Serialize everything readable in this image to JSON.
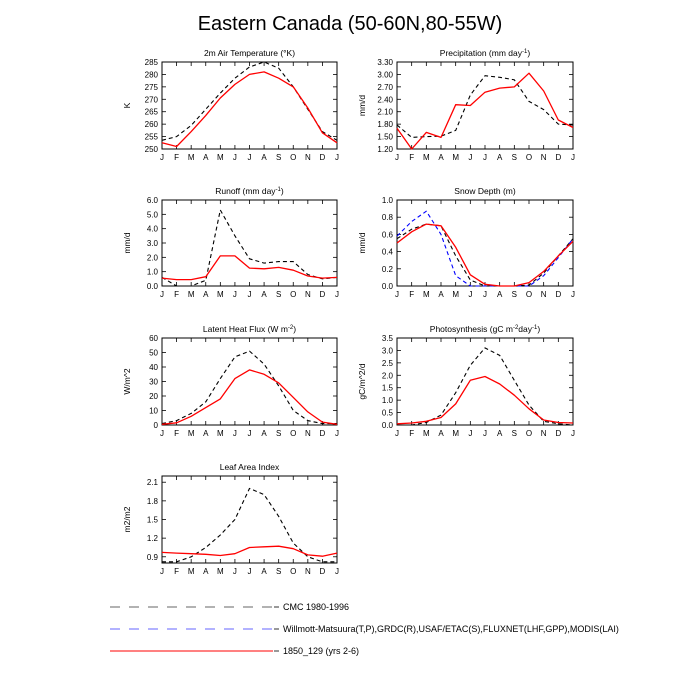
{
  "page": {
    "title": "Eastern Canada (50-60N,80-55W)"
  },
  "legend": [
    {
      "label": "CMC 1980-1996",
      "color": "#000000",
      "dash": true
    },
    {
      "label": "Willmott-Matsuura(T,P),GRDC(R),USAF/ETAC(S),FLUXNET(LHF,GPP),MODIS(LAI)",
      "color": "#0000ff",
      "dash": true
    },
    {
      "label": "1850_129 (yrs 2-6)",
      "color": "#ff0000",
      "dash": false
    }
  ],
  "chart_data": [
    {
      "type": "line",
      "title": "2m Air Temperature (°K)",
      "ylabel": "K",
      "categories": [
        "J",
        "F",
        "M",
        "A",
        "M",
        "J",
        "J",
        "A",
        "S",
        "O",
        "N",
        "D",
        "J"
      ],
      "ylim": [
        250,
        285
      ],
      "yticks": [
        250,
        255,
        260,
        265,
        270,
        275,
        280,
        285
      ],
      "ytick_labels": [
        "250",
        "255",
        "260",
        "265",
        "270",
        "275",
        "280",
        "285"
      ],
      "series": [
        {
          "name": "CMC 1980-1996",
          "color": "#000000",
          "dash": true,
          "values": [
            253.5,
            255,
            259.5,
            266,
            272.5,
            278.5,
            283,
            285,
            282.5,
            275,
            266,
            257,
            253.5
          ]
        },
        {
          "name": "1850_129 (yrs 2-6)",
          "color": "#ff0000",
          "dash": false,
          "values": [
            252.5,
            251,
            257,
            263.5,
            270.5,
            276,
            280,
            281,
            278.5,
            275,
            266.5,
            256.5,
            252.5
          ]
        }
      ]
    },
    {
      "type": "line",
      "title": "Precipitation (mm day-1)",
      "ylabel": "mm/d",
      "categories": [
        "J",
        "F",
        "M",
        "A",
        "M",
        "J",
        "J",
        "A",
        "S",
        "O",
        "N",
        "D",
        "J"
      ],
      "ylim": [
        1.2,
        3.3
      ],
      "yticks": [
        1.2,
        1.5,
        1.8,
        2.1,
        2.4,
        2.7,
        3.0,
        3.3
      ],
      "ytick_labels": [
        "1.20",
        "1.50",
        "1.80",
        "2.10",
        "2.40",
        "2.70",
        "3.00",
        "3.30"
      ],
      "series": [
        {
          "name": "CMC 1980-1996",
          "color": "#000000",
          "dash": true,
          "values": [
            1.78,
            1.48,
            1.5,
            1.51,
            1.65,
            2.5,
            2.97,
            2.93,
            2.87,
            2.35,
            2.15,
            1.8,
            1.78
          ]
        },
        {
          "name": "1850_129 (yrs 2-6)",
          "color": "#ff0000",
          "dash": false,
          "values": [
            1.7,
            1.2,
            1.6,
            1.48,
            2.27,
            2.25,
            2.57,
            2.67,
            2.7,
            3.03,
            2.6,
            1.9,
            1.72
          ]
        }
      ]
    },
    {
      "type": "line",
      "title": "Runoff (mm day-1)",
      "ylabel": "mm/d",
      "categories": [
        "J",
        "F",
        "M",
        "A",
        "M",
        "J",
        "J",
        "A",
        "S",
        "O",
        "N",
        "D",
        "J"
      ],
      "ylim": [
        0,
        6
      ],
      "yticks": [
        0,
        1,
        2,
        3,
        4,
        5,
        6
      ],
      "ytick_labels": [
        "0.0",
        "1.0",
        "2.0",
        "3.0",
        "4.0",
        "5.0",
        "6.0"
      ],
      "series": [
        {
          "name": "CMC 1980-1996",
          "color": "#000000",
          "dash": true,
          "values": [
            0.6,
            0.0,
            0.0,
            0.4,
            5.3,
            3.5,
            1.9,
            1.6,
            1.7,
            1.7,
            0.8,
            0.5,
            0.6
          ]
        },
        {
          "name": "1850_129 (yrs 2-6)",
          "color": "#ff0000",
          "dash": false,
          "values": [
            0.55,
            0.45,
            0.45,
            0.65,
            2.1,
            2.1,
            1.25,
            1.2,
            1.3,
            1.1,
            0.7,
            0.55,
            0.6
          ]
        }
      ]
    },
    {
      "type": "line",
      "title": "Snow Depth (m)",
      "ylabel": "mm/d",
      "categories": [
        "J",
        "F",
        "M",
        "A",
        "M",
        "J",
        "J",
        "A",
        "S",
        "O",
        "N",
        "D",
        "J"
      ],
      "ylim": [
        0,
        1.0
      ],
      "yticks": [
        0,
        0.2,
        0.4,
        0.6,
        0.8,
        1.0
      ],
      "ytick_labels": [
        "0.0",
        "0.2",
        "0.4",
        "0.6",
        "0.8",
        "1.0"
      ],
      "series": [
        {
          "name": "CMC 1980-1996",
          "color": "#000000",
          "dash": true,
          "values": [
            0.55,
            0.66,
            0.72,
            0.7,
            0.35,
            0.07,
            0.0,
            0.0,
            0.0,
            0.01,
            0.15,
            0.35,
            0.55
          ]
        },
        {
          "name": "Willmott-Matsuura(T,P),GRDC(R),USAF/ETAC(S),FLUXNET(LHF,GPP),MODIS(LAI)",
          "color": "#0000ff",
          "dash": true,
          "values": [
            0.58,
            0.75,
            0.87,
            0.6,
            0.12,
            0.0,
            0.0,
            0.0,
            0.0,
            0.0,
            0.12,
            0.33,
            0.55
          ]
        },
        {
          "name": "1850_129 (yrs 2-6)",
          "color": "#ff0000",
          "dash": false,
          "values": [
            0.5,
            0.63,
            0.72,
            0.7,
            0.45,
            0.13,
            0.02,
            0.0,
            0.0,
            0.04,
            0.17,
            0.35,
            0.52
          ]
        }
      ]
    },
    {
      "type": "line",
      "title": "Latent Heat Flux (W m-2)",
      "ylabel": "W/m^2",
      "categories": [
        "J",
        "F",
        "M",
        "A",
        "M",
        "J",
        "J",
        "A",
        "S",
        "O",
        "N",
        "D",
        "J"
      ],
      "ylim": [
        0,
        60
      ],
      "yticks": [
        0,
        10,
        20,
        30,
        40,
        50,
        60
      ],
      "ytick_labels": [
        "0",
        "10",
        "20",
        "30",
        "40",
        "50",
        "60"
      ],
      "series": [
        {
          "name": "CMC 1980-1996",
          "color": "#000000",
          "dash": true,
          "values": [
            1,
            3,
            8,
            16,
            32,
            47,
            51,
            42,
            27,
            10,
            3,
            1,
            1
          ]
        },
        {
          "name": "1850_129 (yrs 2-6)",
          "color": "#ff0000",
          "dash": false,
          "values": [
            0.5,
            1.5,
            6,
            12,
            18,
            32,
            38,
            35,
            29,
            19,
            9,
            2,
            0.5
          ]
        }
      ]
    },
    {
      "type": "line",
      "title": "Photosynthesis (gC m-2day-1)",
      "ylabel": "gC/m^2/d",
      "categories": [
        "J",
        "F",
        "M",
        "A",
        "M",
        "J",
        "J",
        "A",
        "S",
        "O",
        "N",
        "D",
        "J"
      ],
      "ylim": [
        0,
        3.5
      ],
      "yticks": [
        0,
        0.5,
        1.0,
        1.5,
        2.0,
        2.5,
        3.0,
        3.5
      ],
      "ytick_labels": [
        "0.0",
        "0.5",
        "1.0",
        "1.5",
        "2.0",
        "2.5",
        "3.0",
        "3.5"
      ],
      "series": [
        {
          "name": "CMC 1980-1996",
          "color": "#000000",
          "dash": true,
          "values": [
            0.0,
            0.0,
            0.1,
            0.4,
            1.3,
            2.4,
            3.1,
            2.8,
            1.8,
            0.8,
            0.15,
            0.05,
            0.0
          ]
        },
        {
          "name": "1850_129 (yrs 2-6)",
          "color": "#ff0000",
          "dash": false,
          "values": [
            0.05,
            0.08,
            0.15,
            0.3,
            0.85,
            1.8,
            1.95,
            1.65,
            1.2,
            0.65,
            0.2,
            0.1,
            0.08
          ]
        }
      ]
    },
    {
      "type": "line",
      "title": "Leaf Area Index",
      "ylabel": "m2/m2",
      "categories": [
        "J",
        "F",
        "M",
        "A",
        "M",
        "J",
        "J",
        "A",
        "S",
        "O",
        "N",
        "D",
        "J"
      ],
      "ylim": [
        0.8,
        2.2
      ],
      "yticks": [
        0.9,
        1.2,
        1.5,
        1.8,
        2.1
      ],
      "ytick_labels": [
        "0.9",
        "1.2",
        "1.5",
        "1.8",
        "2.1"
      ],
      "series": [
        {
          "name": "CMC 1980-1996",
          "color": "#000000",
          "dash": true,
          "values": [
            0.82,
            0.82,
            0.9,
            1.05,
            1.25,
            1.5,
            2.0,
            1.9,
            1.55,
            1.12,
            0.9,
            0.82,
            0.82
          ]
        },
        {
          "name": "1850_129 (yrs 2-6)",
          "color": "#ff0000",
          "dash": false,
          "values": [
            0.97,
            0.96,
            0.95,
            0.94,
            0.92,
            0.95,
            1.05,
            1.06,
            1.07,
            1.03,
            0.93,
            0.91,
            0.96
          ]
        }
      ]
    }
  ]
}
